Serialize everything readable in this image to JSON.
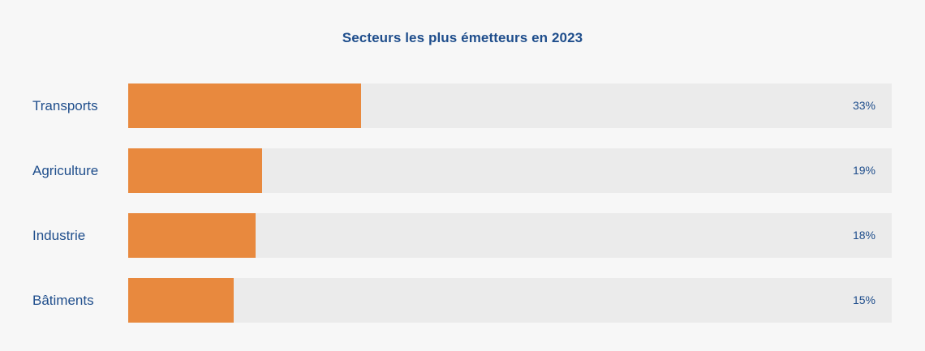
{
  "chart_data": {
    "type": "bar",
    "orientation": "horizontal",
    "title": "Secteurs les plus émetteurs en 2023",
    "xlabel": "",
    "ylabel": "",
    "categories": [
      "Transports",
      "Agriculture",
      "Industrie",
      "Bâtiments"
    ],
    "values": [
      33,
      19,
      18,
      15
    ],
    "value_labels": [
      "33%",
      "19%",
      "18%",
      "15%"
    ],
    "grid": false,
    "colors": {
      "bar": "#e8893e",
      "track": "#ebebeb",
      "text": "#1f4e8c",
      "background": "#f7f7f7"
    }
  }
}
